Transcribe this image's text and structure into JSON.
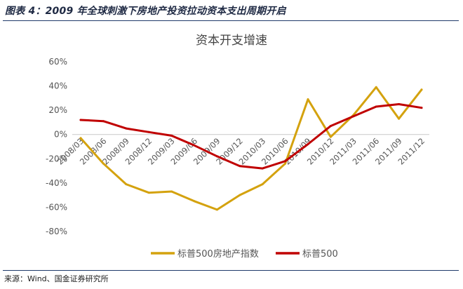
{
  "figure": {
    "caption": "图表 4：2009 年全球刺激下房地产投资拉动资本支出周期开启",
    "source": "来源：Wind、国金证券研究所"
  },
  "chart_data": {
    "type": "line",
    "title": "资本开支增速",
    "xlabel": "",
    "ylabel": "",
    "categories": [
      "2008/03",
      "2008/06",
      "2008/09",
      "2008/12",
      "2009/03",
      "2009/06",
      "2009/09",
      "2009/12",
      "2010/03",
      "2010/06",
      "2010/09",
      "2010/12",
      "2011/03",
      "2011/06",
      "2011/09",
      "2011/12"
    ],
    "y_ticks": [
      "60%",
      "40%",
      "20%",
      "0%",
      "-20%",
      "-40%",
      "-60%",
      "-80%"
    ],
    "ylim": [
      -80,
      60
    ],
    "grid": false,
    "legend_position": "bottom",
    "series": [
      {
        "name": "标普500房地产指数",
        "color": "#D4A20E",
        "values": [
          -3,
          -24,
          -41,
          -48,
          -47,
          -55,
          -62,
          -50,
          -41,
          -24,
          29,
          -2,
          16,
          39,
          13,
          37
        ]
      },
      {
        "name": "标普500",
        "color": "#C00000",
        "values": [
          12,
          11,
          5,
          2,
          -1,
          -9,
          -18,
          -26,
          -28,
          -22,
          -8,
          7,
          15,
          23,
          25,
          22
        ]
      }
    ]
  }
}
